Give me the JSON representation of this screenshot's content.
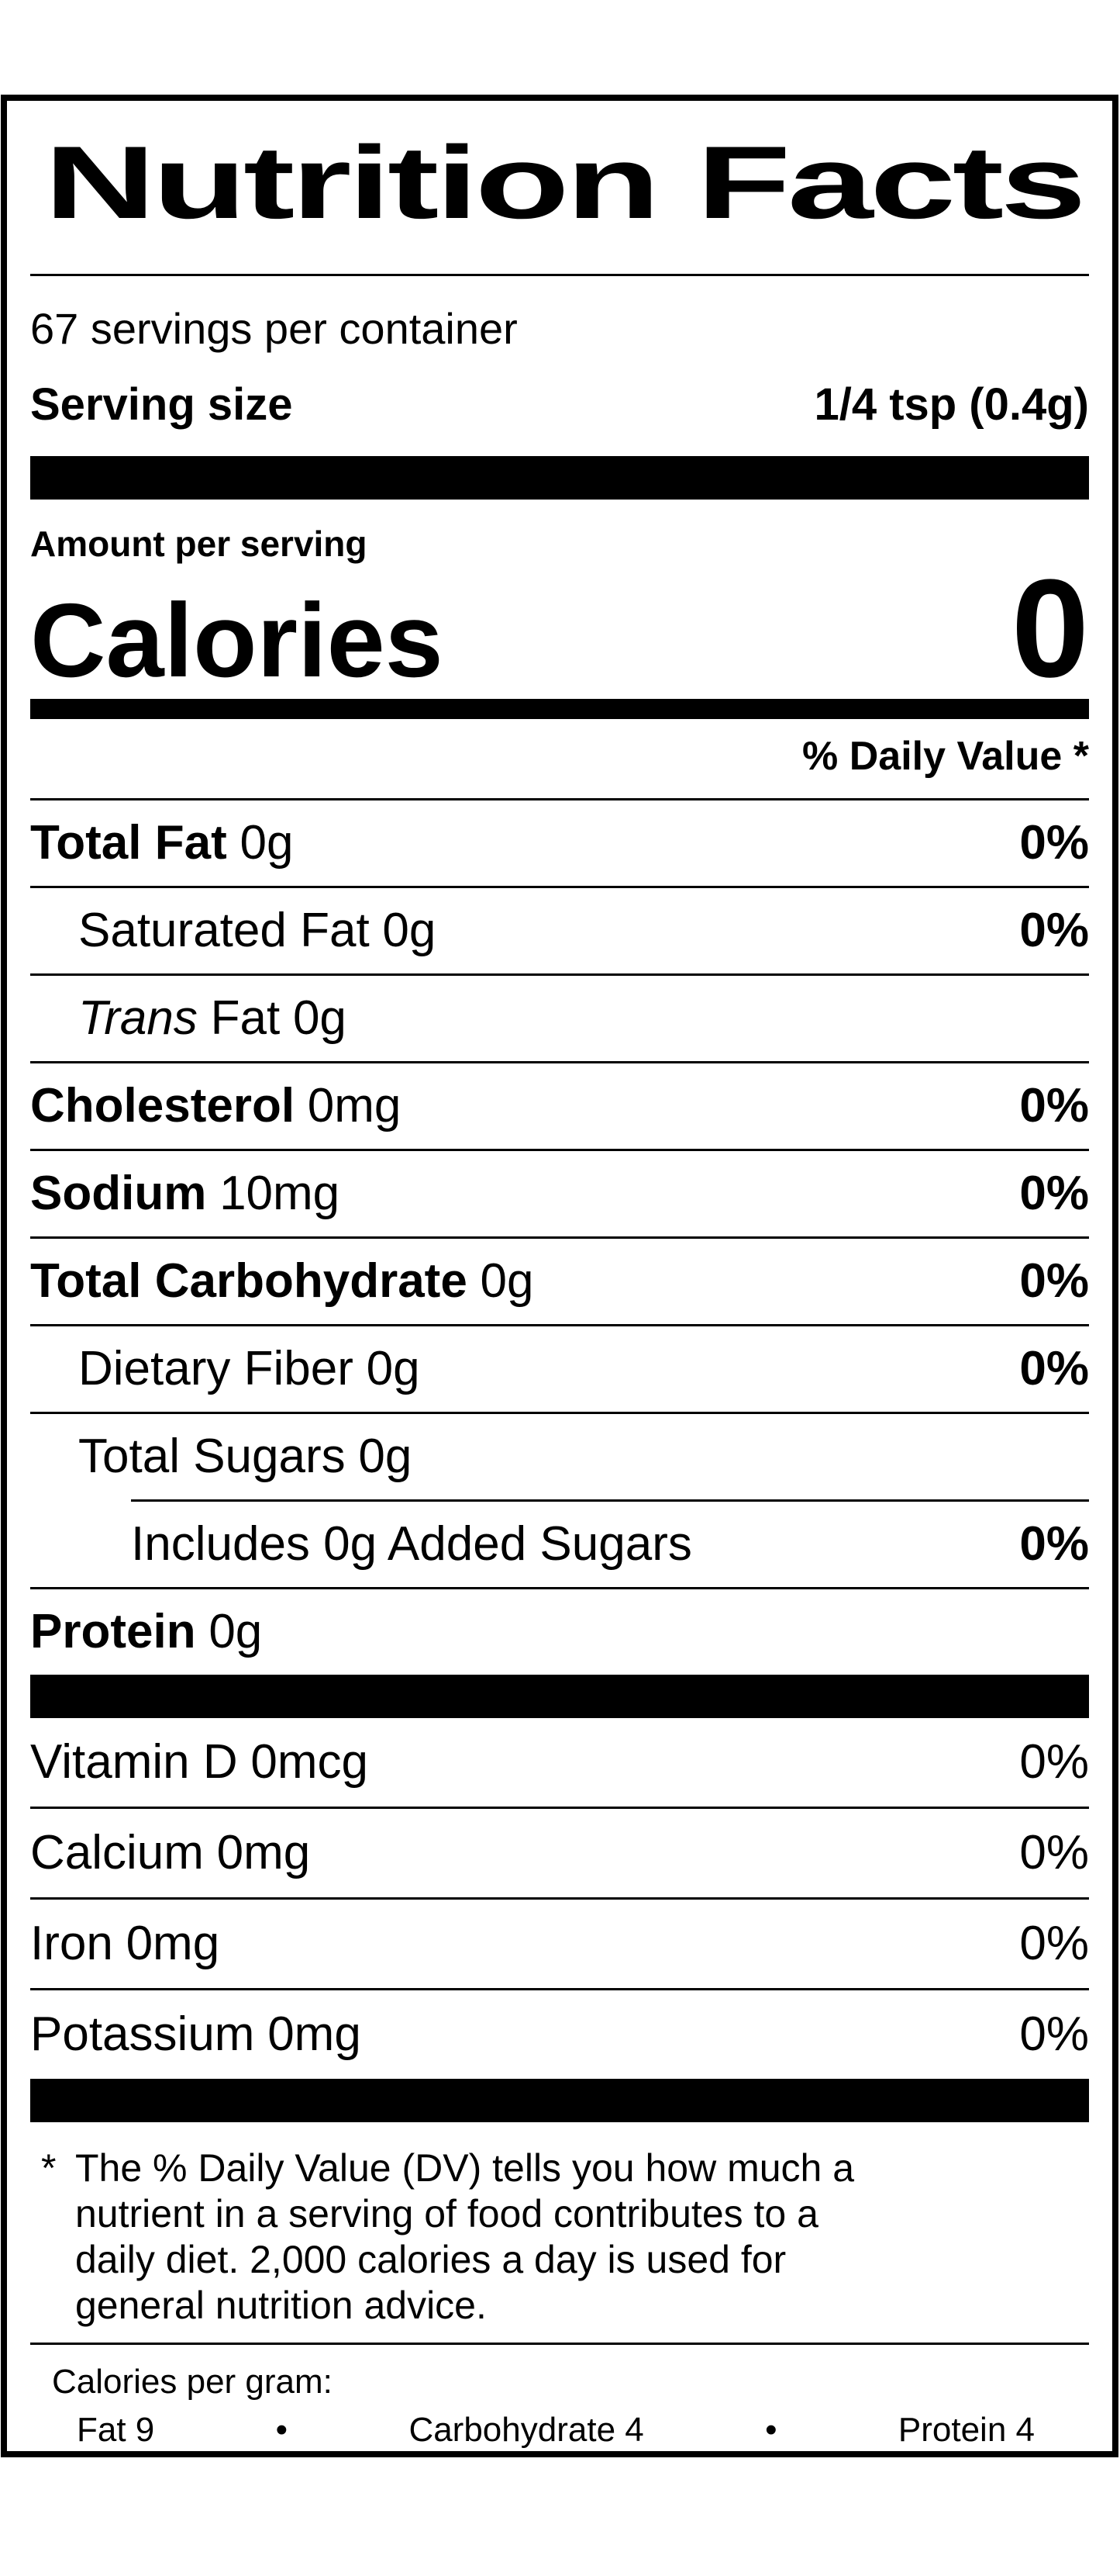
{
  "label": {
    "title": "Nutrition Facts",
    "servings_per_container": "67 servings per container",
    "serving_size_label": "Serving size",
    "serving_size_value": "1/4 tsp (0.4g)",
    "amount_per_serving": "Amount per serving",
    "calories_label": "Calories",
    "calories_value": "0",
    "daily_value_header": "% Daily Value *",
    "rows": [
      {
        "name": "Total Fat",
        "amount": "0g",
        "dv": "0%"
      },
      {
        "name": "Saturated Fat",
        "amount": "0g",
        "dv": "0%"
      },
      {
        "name_italic": "Trans",
        "name_rest": "Fat",
        "amount": "0g"
      },
      {
        "name": "Cholesterol",
        "amount": "0mg",
        "dv": "0%"
      },
      {
        "name": "Sodium",
        "amount": "10mg",
        "dv": "0%"
      },
      {
        "name": "Total Carbohydrate",
        "amount": "0g",
        "dv": "0%"
      },
      {
        "name": "Dietary Fiber",
        "amount": "0g",
        "dv": "0%"
      },
      {
        "name": "Total Sugars",
        "amount": "0g"
      },
      {
        "name": "Includes 0g Added Sugars",
        "dv": "0%"
      },
      {
        "name": "Protein",
        "amount": "0g"
      }
    ],
    "vitamins": [
      {
        "name": "Vitamin D",
        "amount": "0mcg",
        "dv": "0%"
      },
      {
        "name": "Calcium",
        "amount": "0mg",
        "dv": "0%"
      },
      {
        "name": "Iron",
        "amount": "0mg",
        "dv": "0%"
      },
      {
        "name": "Potassium",
        "amount": "0mg",
        "dv": "0%"
      }
    ],
    "footnote": {
      "star": "*",
      "lines": [
        "The % Daily Value (DV) tells you how much a",
        "nutrient in a serving of food contributes to a",
        "daily diet. 2,000 calories a day is used for",
        "general nutrition advice."
      ]
    },
    "calories_per_gram": {
      "title": "Calories per gram:",
      "bullet": "•",
      "items": [
        "Fat 9",
        "Carbohydrate 4",
        "Protein 4"
      ]
    }
  }
}
